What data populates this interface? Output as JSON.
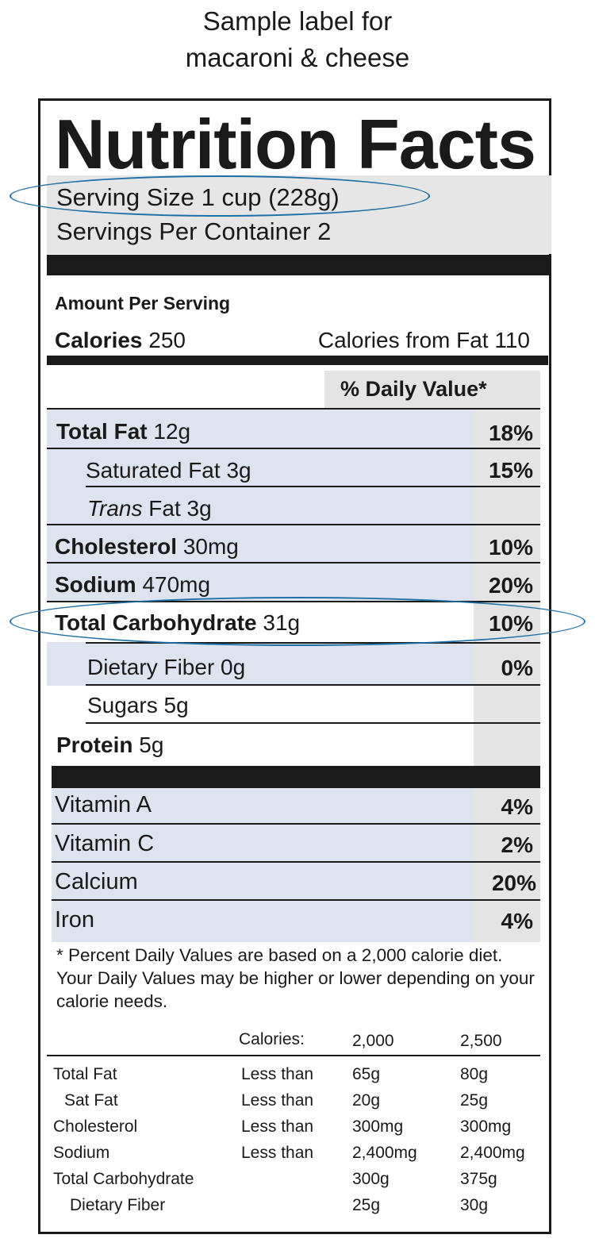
{
  "caption": {
    "line1": "Sample label for",
    "line2": "macaroni & cheese"
  },
  "title": "Nutrition Facts",
  "serving": {
    "size": "Serving Size 1 cup (228g)",
    "per_container": "Servings Per Container  2"
  },
  "amount_per_serving": "Amount Per Serving",
  "calories": {
    "label": "Calories",
    "value": "250",
    "from_fat": "Calories from Fat 110"
  },
  "daily_value_header": "% Daily Value*",
  "nutrients": [
    {
      "name": "Total Fat",
      "amount": "12g",
      "dv": "18%"
    },
    {
      "name": "Saturated Fat",
      "amount": "3g",
      "dv": "15%"
    },
    {
      "name": "Trans",
      "name_suffix": "Fat",
      "amount": "3g",
      "dv": ""
    },
    {
      "name": "Cholesterol",
      "amount": "30mg",
      "dv": "10%"
    },
    {
      "name": "Sodium",
      "amount": "470mg",
      "dv": "20%"
    },
    {
      "name": "Total Carbohydrate",
      "amount": "31g",
      "dv": "10%"
    },
    {
      "name": "Dietary Fiber",
      "amount": "0g",
      "dv": "0%"
    },
    {
      "name": "Sugars",
      "amount": "5g",
      "dv": ""
    },
    {
      "name": "Protein",
      "amount": "5g",
      "dv": ""
    }
  ],
  "vitamins": [
    {
      "name": "Vitamin A",
      "dv": "4%"
    },
    {
      "name": "Vitamin C",
      "dv": "2%"
    },
    {
      "name": "Calcium",
      "dv": "20%"
    },
    {
      "name": "Iron",
      "dv": "4%"
    }
  ],
  "footnote": "* Percent Daily Values are based on a 2,000 calorie diet. Your Daily Values may be higher or lower depending on your calorie needs.",
  "footer_table": {
    "header": [
      "Calories:",
      "2,000",
      "2,500"
    ],
    "rows": [
      [
        "Total Fat",
        "Less than",
        "65g",
        "80g"
      ],
      [
        "Sat Fat",
        "Less than",
        "20g",
        "25g"
      ],
      [
        "Cholesterol",
        "Less than",
        "300mg",
        "300mg"
      ],
      [
        "Sodium",
        "Less than",
        "2,400mg",
        "2,400mg"
      ],
      [
        "Total Carbohydrate",
        "",
        "300g",
        "375g"
      ],
      [
        "Dietary Fiber",
        "",
        "25g",
        "30g"
      ]
    ]
  },
  "highlight_color": "#1d6fa5",
  "band_color": "#dde4ef"
}
